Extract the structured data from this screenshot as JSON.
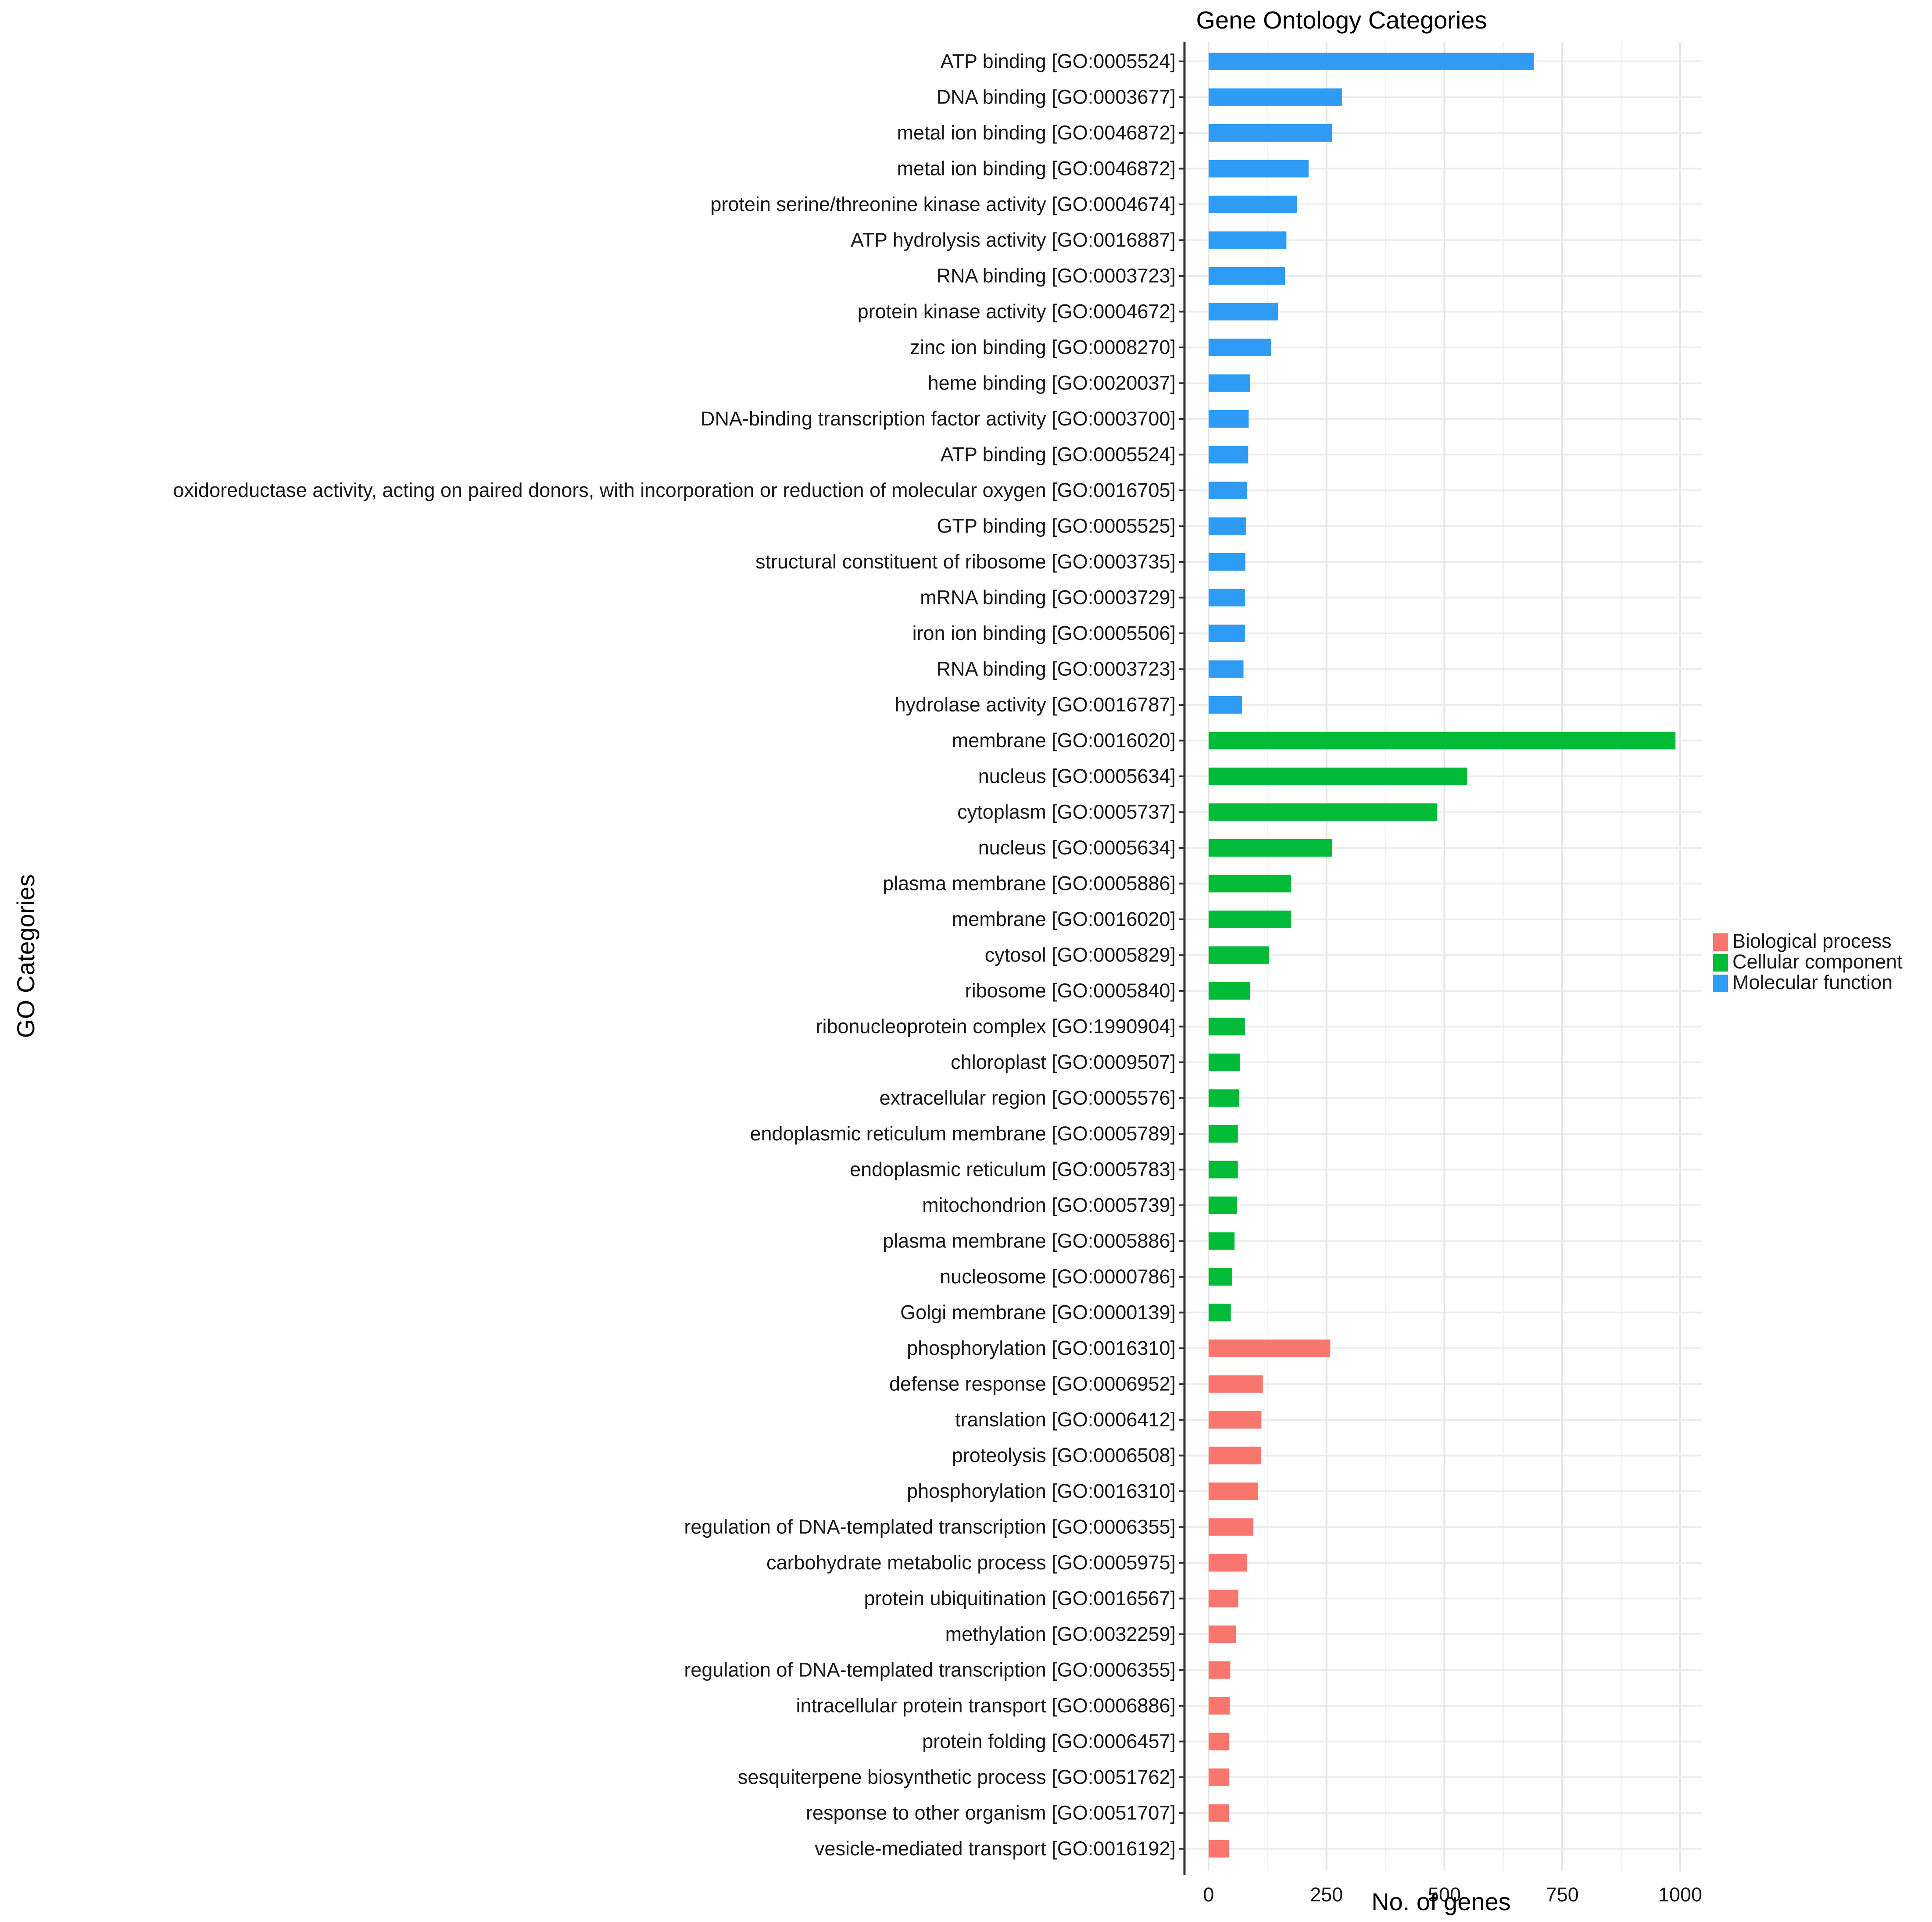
{
  "chart_data": {
    "type": "bar",
    "orientation": "horizontal",
    "title": "Gene Ontology Categories",
    "xlabel": "No. of genes",
    "ylabel": "GO Categories",
    "xlim": [
      0,
      1000
    ],
    "xticks": [
      0,
      250,
      500,
      750,
      1000
    ],
    "grid": true,
    "legend": {
      "position": "right",
      "entries": [
        {
          "name": "Biological process",
          "color": "#F8766D"
        },
        {
          "name": "Cellular component",
          "color": "#00BA38"
        },
        {
          "name": "Molecular function",
          "color": "#2E9BF5"
        }
      ]
    },
    "bars": [
      {
        "label": "ATP binding [GO:0005524]",
        "value": 690,
        "group": "Molecular function"
      },
      {
        "label": "DNA binding [GO:0003677]",
        "value": 283,
        "group": "Molecular function"
      },
      {
        "label": "metal ion binding [GO:0046872]",
        "value": 262,
        "group": "Molecular function"
      },
      {
        "label": "metal ion binding [GO:0046872]",
        "value": 212,
        "group": "Molecular function"
      },
      {
        "label": "protein serine/threonine kinase activity [GO:0004674]",
        "value": 188,
        "group": "Molecular function"
      },
      {
        "label": "ATP hydrolysis activity [GO:0016887]",
        "value": 165,
        "group": "Molecular function"
      },
      {
        "label": "RNA binding [GO:0003723]",
        "value": 162,
        "group": "Molecular function"
      },
      {
        "label": "protein kinase activity [GO:0004672]",
        "value": 147,
        "group": "Molecular function"
      },
      {
        "label": "zinc ion binding [GO:0008270]",
        "value": 132,
        "group": "Molecular function"
      },
      {
        "label": "heme binding [GO:0020037]",
        "value": 88,
        "group": "Molecular function"
      },
      {
        "label": "DNA-binding transcription factor activity [GO:0003700]",
        "value": 85,
        "group": "Molecular function"
      },
      {
        "label": "ATP binding [GO:0005524]",
        "value": 84,
        "group": "Molecular function"
      },
      {
        "label": "oxidoreductase activity, acting on paired donors, with incorporation or reduction of molecular oxygen [GO:0016705]",
        "value": 82,
        "group": "Molecular function"
      },
      {
        "label": "GTP binding [GO:0005525]",
        "value": 80,
        "group": "Molecular function"
      },
      {
        "label": "structural constituent of ribosome [GO:0003735]",
        "value": 78,
        "group": "Molecular function"
      },
      {
        "label": "mRNA binding [GO:0003729]",
        "value": 77,
        "group": "Molecular function"
      },
      {
        "label": "iron ion binding [GO:0005506]",
        "value": 77,
        "group": "Molecular function"
      },
      {
        "label": "RNA binding [GO:0003723]",
        "value": 74,
        "group": "Molecular function"
      },
      {
        "label": "hydrolase activity [GO:0016787]",
        "value": 71,
        "group": "Molecular function"
      },
      {
        "label": "membrane [GO:0016020]",
        "value": 990,
        "group": "Cellular component"
      },
      {
        "label": "nucleus [GO:0005634]",
        "value": 548,
        "group": "Cellular component"
      },
      {
        "label": "cytoplasm [GO:0005737]",
        "value": 485,
        "group": "Cellular component"
      },
      {
        "label": "nucleus [GO:0005634]",
        "value": 262,
        "group": "Cellular component"
      },
      {
        "label": "plasma membrane [GO:0005886]",
        "value": 175,
        "group": "Cellular component"
      },
      {
        "label": "membrane [GO:0016020]",
        "value": 175,
        "group": "Cellular component"
      },
      {
        "label": "cytosol [GO:0005829]",
        "value": 128,
        "group": "Cellular component"
      },
      {
        "label": "ribosome [GO:0005840]",
        "value": 88,
        "group": "Cellular component"
      },
      {
        "label": "ribonucleoprotein complex [GO:1990904]",
        "value": 77,
        "group": "Cellular component"
      },
      {
        "label": "chloroplast [GO:0009507]",
        "value": 66,
        "group": "Cellular component"
      },
      {
        "label": "extracellular region [GO:0005576]",
        "value": 65,
        "group": "Cellular component"
      },
      {
        "label": "endoplasmic reticulum membrane [GO:0005789]",
        "value": 62,
        "group": "Cellular component"
      },
      {
        "label": "endoplasmic reticulum [GO:0005783]",
        "value": 62,
        "group": "Cellular component"
      },
      {
        "label": "mitochondrion [GO:0005739]",
        "value": 60,
        "group": "Cellular component"
      },
      {
        "label": "plasma membrane [GO:0005886]",
        "value": 55,
        "group": "Cellular component"
      },
      {
        "label": "nucleosome [GO:0000786]",
        "value": 50,
        "group": "Cellular component"
      },
      {
        "label": "Golgi membrane [GO:0000139]",
        "value": 47,
        "group": "Cellular component"
      },
      {
        "label": "phosphorylation [GO:0016310]",
        "value": 258,
        "group": "Biological process"
      },
      {
        "label": "defense response [GO:0006952]",
        "value": 115,
        "group": "Biological process"
      },
      {
        "label": "translation [GO:0006412]",
        "value": 112,
        "group": "Biological process"
      },
      {
        "label": "proteolysis [GO:0006508]",
        "value": 111,
        "group": "Biological process"
      },
      {
        "label": "phosphorylation [GO:0016310]",
        "value": 105,
        "group": "Biological process"
      },
      {
        "label": "regulation of DNA-templated transcription [GO:0006355]",
        "value": 95,
        "group": "Biological process"
      },
      {
        "label": "carbohydrate metabolic process [GO:0005975]",
        "value": 82,
        "group": "Biological process"
      },
      {
        "label": "protein ubiquitination [GO:0016567]",
        "value": 63,
        "group": "Biological process"
      },
      {
        "label": "methylation [GO:0032259]",
        "value": 58,
        "group": "Biological process"
      },
      {
        "label": "regulation of DNA-templated transcription [GO:0006355]",
        "value": 46,
        "group": "Biological process"
      },
      {
        "label": "intracellular protein transport [GO:0006886]",
        "value": 45,
        "group": "Biological process"
      },
      {
        "label": "protein folding [GO:0006457]",
        "value": 44,
        "group": "Biological process"
      },
      {
        "label": "sesquiterpene biosynthetic process [GO:0051762]",
        "value": 44,
        "group": "Biological process"
      },
      {
        "label": "response to other organism [GO:0051707]",
        "value": 43,
        "group": "Biological process"
      },
      {
        "label": "vesicle-mediated transport [GO:0016192]",
        "value": 43,
        "group": "Biological process"
      }
    ]
  }
}
